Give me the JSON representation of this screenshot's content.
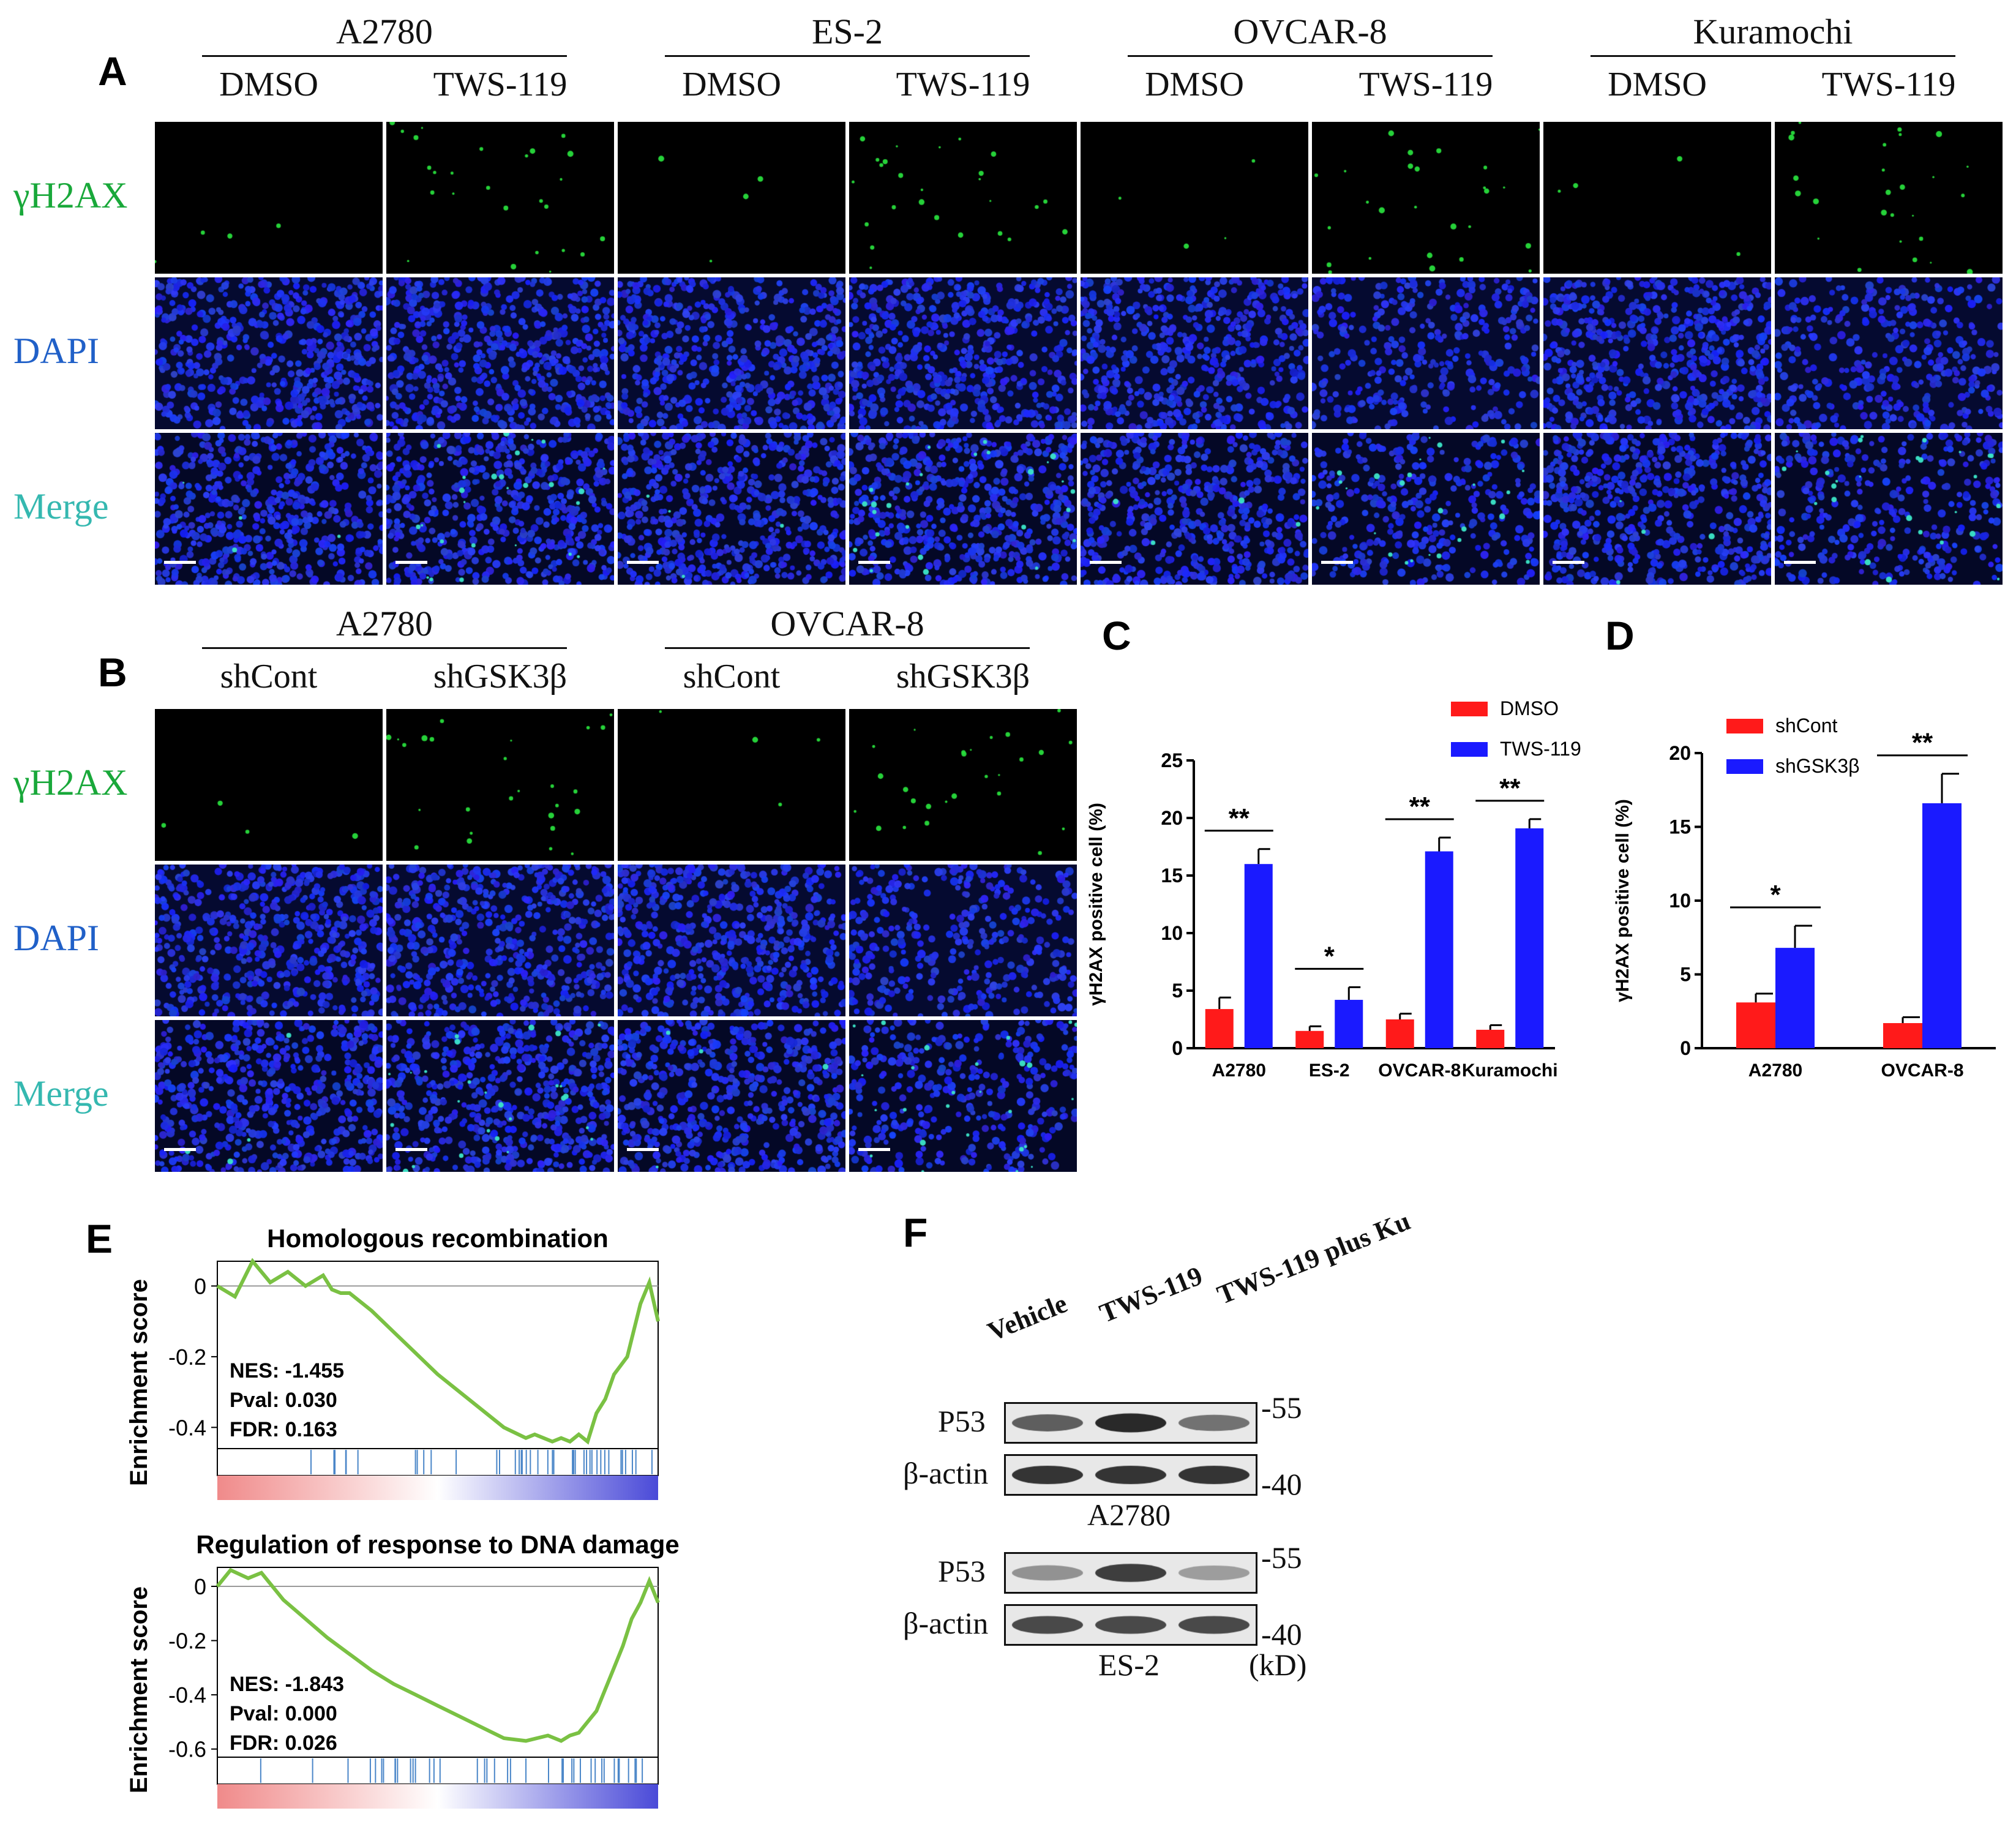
{
  "panel_labels": {
    "A": "A",
    "B": "B",
    "C": "C",
    "D": "D",
    "E": "E",
    "F": "F"
  },
  "panelA": {
    "cell_lines": [
      "A2780",
      "ES-2",
      "OVCAR-8",
      "Kuramochi"
    ],
    "conditions": [
      "DMSO",
      "TWS-119"
    ],
    "rows": [
      {
        "label": "γH2AX",
        "color": "#19a83a"
      },
      {
        "label": "DAPI",
        "color": "#2060c8"
      },
      {
        "label": "Merge",
        "color": "#35b8b0"
      }
    ]
  },
  "panelB": {
    "cell_lines": [
      "A2780",
      "OVCAR-8"
    ],
    "conditions": [
      "shCont",
      "shGSK3β"
    ],
    "rows": [
      {
        "label": "γH2AX",
        "color": "#19a83a"
      },
      {
        "label": "DAPI",
        "color": "#2060c8"
      },
      {
        "label": "Merge",
        "color": "#35b8b0"
      }
    ]
  },
  "chart_data": [
    {
      "id": "C",
      "type": "bar",
      "categories": [
        "A2780",
        "ES-2",
        "OVCAR-8",
        "Kuramochi"
      ],
      "series": [
        {
          "name": "DMSO",
          "color": "#ff1a1a",
          "values": [
            3.4,
            1.5,
            2.5,
            1.6
          ],
          "errors": [
            1.0,
            0.4,
            0.5,
            0.4
          ]
        },
        {
          "name": "TWS-119",
          "color": "#1a1aff",
          "values": [
            16.0,
            4.2,
            17.1,
            19.1
          ],
          "errors": [
            1.3,
            1.1,
            1.2,
            0.8
          ]
        }
      ],
      "ylabel": "γH2AX positive cell (%)",
      "ylim": [
        0,
        25
      ],
      "yticks": [
        0,
        5,
        10,
        15,
        20,
        25
      ],
      "significance": [
        "**",
        "*",
        "**",
        "**"
      ],
      "legend_position": "top-right"
    },
    {
      "id": "D",
      "type": "bar",
      "categories": [
        "A2780",
        "OVCAR-8"
      ],
      "series": [
        {
          "name": "shCont",
          "color": "#ff1a1a",
          "values": [
            3.1,
            1.7
          ],
          "errors": [
            0.6,
            0.4
          ]
        },
        {
          "name": "shGSK3β",
          "color": "#1a1aff",
          "values": [
            6.8,
            16.6
          ],
          "errors": [
            1.5,
            2.0
          ]
        }
      ],
      "ylabel": "γH2AX positive cell (%)",
      "ylim": [
        0,
        20
      ],
      "yticks": [
        0,
        5,
        10,
        15,
        20
      ],
      "significance": [
        "*",
        "**"
      ],
      "legend_position": "top"
    },
    {
      "id": "E1",
      "type": "line",
      "title": "Homologous recombination",
      "ylabel": "Enrichment score",
      "ylim": [
        -0.46,
        0.07
      ],
      "yticks": [
        0,
        -0.2,
        -0.4
      ],
      "x": [
        0,
        0.04,
        0.08,
        0.12,
        0.16,
        0.2,
        0.24,
        0.26,
        0.28,
        0.3,
        0.35,
        0.4,
        0.45,
        0.5,
        0.55,
        0.6,
        0.65,
        0.7,
        0.72,
        0.74,
        0.76,
        0.78,
        0.8,
        0.82,
        0.84,
        0.86,
        0.88,
        0.9,
        0.93,
        0.96,
        0.98,
        1.0
      ],
      "y": [
        0,
        -0.03,
        0.07,
        0.01,
        0.04,
        0.0,
        0.03,
        -0.01,
        -0.02,
        -0.02,
        -0.07,
        -0.13,
        -0.19,
        -0.25,
        -0.3,
        -0.35,
        -0.4,
        -0.43,
        -0.42,
        -0.43,
        -0.44,
        -0.43,
        -0.44,
        -0.42,
        -0.44,
        -0.36,
        -0.32,
        -0.25,
        -0.2,
        -0.05,
        0.01,
        -0.1
      ],
      "stats": [
        "NES: -1.455",
        "Pval: 0.030",
        "FDR: 0.163"
      ]
    },
    {
      "id": "E2",
      "type": "line",
      "title": "Regulation of response to DNA damage",
      "ylabel": "Enrichment score",
      "ylim": [
        -0.63,
        0.07
      ],
      "yticks": [
        0,
        -0.2,
        -0.4,
        -0.6
      ],
      "x": [
        0,
        0.03,
        0.07,
        0.1,
        0.15,
        0.2,
        0.25,
        0.3,
        0.35,
        0.4,
        0.45,
        0.5,
        0.55,
        0.6,
        0.65,
        0.7,
        0.75,
        0.78,
        0.8,
        0.82,
        0.84,
        0.86,
        0.88,
        0.9,
        0.92,
        0.94,
        0.96,
        0.98,
        1.0
      ],
      "y": [
        0,
        0.06,
        0.03,
        0.05,
        -0.05,
        -0.12,
        -0.19,
        -0.25,
        -0.31,
        -0.36,
        -0.4,
        -0.44,
        -0.48,
        -0.52,
        -0.56,
        -0.57,
        -0.55,
        -0.57,
        -0.55,
        -0.54,
        -0.5,
        -0.46,
        -0.38,
        -0.3,
        -0.22,
        -0.12,
        -0.06,
        0.02,
        -0.06
      ],
      "stats": [
        "NES: -1.843",
        "Pval: 0.000",
        "FDR: 0.026"
      ]
    }
  ],
  "panelF": {
    "lanes": [
      "Vehicle",
      "TWS-119",
      "TWS-119 plus Ku"
    ],
    "blots": [
      {
        "cell_line": "A2780",
        "rows": [
          {
            "label": "P53",
            "marker": "55",
            "intensity": [
              0.65,
              0.9,
              0.55
            ]
          },
          {
            "label": "β-actin",
            "marker": "40",
            "intensity": [
              0.85,
              0.85,
              0.85
            ]
          }
        ]
      },
      {
        "cell_line": "ES-2",
        "rows": [
          {
            "label": "P53",
            "marker": "55",
            "intensity": [
              0.4,
              0.8,
              0.35
            ]
          },
          {
            "label": "β-actin",
            "marker": "40",
            "intensity": [
              0.75,
              0.75,
              0.75
            ]
          }
        ]
      }
    ],
    "unit": "(kD)"
  }
}
